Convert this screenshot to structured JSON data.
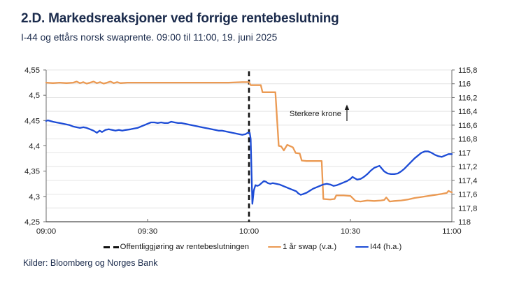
{
  "header": {
    "title": "2.D. Markedsreaksjoner ved forrige rentebeslutning",
    "subtitle": "I-44 og ettårs norsk swaprente. 09:00 til 11:00, 19. juni 2025"
  },
  "footer": {
    "source": "Kilder: Bloomberg og Norges Bank"
  },
  "colors": {
    "title_text": "#1b2b4c",
    "swap_line": "#eb9a53",
    "i44_line": "#1d4cd6",
    "event_line": "#111111",
    "grid": "#e4e4e4",
    "axis": "#6e6e6e",
    "tick_text": "#1a1a1a"
  },
  "chart_data": {
    "type": "line",
    "title": "2.D. Markedsreaksjoner ved forrige rentebeslutning",
    "subtitle": "I-44 og ettårs norsk swaprente. 09:00 til 11:00, 19. juni 2025",
    "x_unit": "minutes since 09:00",
    "x_min": 0,
    "x_max": 120,
    "x_ticks": [
      {
        "m": 0,
        "label": "09:00"
      },
      {
        "m": 30,
        "label": "09:30"
      },
      {
        "m": 60,
        "label": "10:00"
      },
      {
        "m": 90,
        "label": "10:30"
      },
      {
        "m": 120,
        "label": "11:00"
      }
    ],
    "left_axis": {
      "min": 4.25,
      "max": 4.55,
      "ticks": [
        4.55,
        4.5,
        4.45,
        4.4,
        4.35,
        4.3,
        4.25
      ],
      "decimal_separator": "comma"
    },
    "right_axis": {
      "min": 115.8,
      "max": 118,
      "inverted": true,
      "ticks": [
        115.8,
        116,
        116.2,
        116.4,
        116.6,
        116.8,
        117,
        117.2,
        117.4,
        117.6,
        117.8,
        118
      ],
      "decimal_separator": "comma"
    },
    "grid": "horizontal",
    "event_line": {
      "x_minute": 60,
      "label": "Offentliggjøring av rentebeslutningen",
      "style": "dashed-black"
    },
    "annotation": {
      "text": "Sterkere krone",
      "arrow": "up"
    },
    "legend_position": "bottom",
    "series": [
      {
        "name": "1 år swap (v.a.)",
        "axis": "left",
        "color": "#eb9a53",
        "points": [
          [
            0,
            4.525
          ],
          [
            2,
            4.524
          ],
          [
            4,
            4.525
          ],
          [
            6,
            4.524
          ],
          [
            8,
            4.525
          ],
          [
            9,
            4.527
          ],
          [
            10,
            4.524
          ],
          [
            11,
            4.526
          ],
          [
            12,
            4.523
          ],
          [
            13,
            4.525
          ],
          [
            14,
            4.527
          ],
          [
            15,
            4.524
          ],
          [
            16,
            4.526
          ],
          [
            17,
            4.523
          ],
          [
            18,
            4.525
          ],
          [
            19,
            4.527
          ],
          [
            20,
            4.524
          ],
          [
            21,
            4.526
          ],
          [
            22,
            4.524
          ],
          [
            24,
            4.525
          ],
          [
            26,
            4.525
          ],
          [
            30,
            4.525
          ],
          [
            34,
            4.525
          ],
          [
            38,
            4.525
          ],
          [
            42,
            4.525
          ],
          [
            46,
            4.525
          ],
          [
            50,
            4.525
          ],
          [
            54,
            4.525
          ],
          [
            58,
            4.526
          ],
          [
            60,
            4.526
          ],
          [
            60.5,
            4.52
          ],
          [
            63.5,
            4.52
          ],
          [
            64,
            4.506
          ],
          [
            67.8,
            4.506
          ],
          [
            68.8,
            4.4
          ],
          [
            69.5,
            4.399
          ],
          [
            70.3,
            4.391
          ],
          [
            71.3,
            4.402
          ],
          [
            72,
            4.4
          ],
          [
            73,
            4.397
          ],
          [
            73.8,
            4.386
          ],
          [
            75,
            4.385
          ],
          [
            75.6,
            4.371
          ],
          [
            77,
            4.37
          ],
          [
            81.5,
            4.37
          ],
          [
            82,
            4.295
          ],
          [
            84,
            4.294
          ],
          [
            85.3,
            4.295
          ],
          [
            85.8,
            4.302
          ],
          [
            88,
            4.302
          ],
          [
            90,
            4.301
          ],
          [
            91.5,
            4.291
          ],
          [
            93,
            4.29
          ],
          [
            95,
            4.292
          ],
          [
            97,
            4.291
          ],
          [
            99,
            4.292
          ],
          [
            100,
            4.293
          ],
          [
            100.6,
            4.298
          ],
          [
            101.6,
            4.29
          ],
          [
            103,
            4.291
          ],
          [
            105,
            4.292
          ],
          [
            107,
            4.294
          ],
          [
            109,
            4.297
          ],
          [
            111,
            4.299
          ],
          [
            113,
            4.301
          ],
          [
            115,
            4.303
          ],
          [
            117,
            4.305
          ],
          [
            118.5,
            4.307
          ],
          [
            119,
            4.311
          ],
          [
            119.6,
            4.309
          ],
          [
            120,
            4.308
          ]
        ]
      },
      {
        "name": "I44 (h.a.)",
        "axis": "right",
        "color": "#1d4cd6",
        "points": [
          [
            0,
            116.54
          ],
          [
            0.5,
            116.53
          ],
          [
            2,
            116.55
          ],
          [
            3,
            116.56
          ],
          [
            4,
            116.57
          ],
          [
            5,
            116.58
          ],
          [
            6,
            116.59
          ],
          [
            7,
            116.6
          ],
          [
            8,
            116.62
          ],
          [
            9,
            116.63
          ],
          [
            10,
            116.64
          ],
          [
            11,
            116.63
          ],
          [
            12,
            116.64
          ],
          [
            13,
            116.66
          ],
          [
            14,
            116.68
          ],
          [
            15,
            116.71
          ],
          [
            15.8,
            116.68
          ],
          [
            16.5,
            116.7
          ],
          [
            17.5,
            116.67
          ],
          [
            18.5,
            116.66
          ],
          [
            19.5,
            116.67
          ],
          [
            20.5,
            116.68
          ],
          [
            21.5,
            116.67
          ],
          [
            22.5,
            116.68
          ],
          [
            23.5,
            116.67
          ],
          [
            25,
            116.66
          ],
          [
            26,
            116.65
          ],
          [
            27,
            116.64
          ],
          [
            28,
            116.62
          ],
          [
            29,
            116.6
          ],
          [
            30,
            116.58
          ],
          [
            31,
            116.56
          ],
          [
            32,
            116.56
          ],
          [
            33,
            116.57
          ],
          [
            34,
            116.56
          ],
          [
            35,
            116.57
          ],
          [
            36,
            116.57
          ],
          [
            37,
            116.55
          ],
          [
            38,
            116.56
          ],
          [
            39,
            116.57
          ],
          [
            40,
            116.57
          ],
          [
            41,
            116.58
          ],
          [
            42,
            116.59
          ],
          [
            43,
            116.6
          ],
          [
            44,
            116.61
          ],
          [
            45,
            116.62
          ],
          [
            46,
            116.63
          ],
          [
            47,
            116.64
          ],
          [
            48,
            116.65
          ],
          [
            49,
            116.66
          ],
          [
            50,
            116.67
          ],
          [
            51,
            116.68
          ],
          [
            52,
            116.68
          ],
          [
            53,
            116.69
          ],
          [
            54,
            116.7
          ],
          [
            55,
            116.71
          ],
          [
            56,
            116.72
          ],
          [
            57,
            116.73
          ],
          [
            58,
            116.74
          ],
          [
            59,
            116.73
          ],
          [
            59.6,
            116.71
          ],
          [
            60.2,
            116.71
          ],
          [
            60.5,
            116.8
          ],
          [
            61,
            117.74
          ],
          [
            61.4,
            117.55
          ],
          [
            61.9,
            117.47
          ],
          [
            62.5,
            117.48
          ],
          [
            63,
            117.47
          ],
          [
            63.7,
            117.44
          ],
          [
            64.4,
            117.41
          ],
          [
            65,
            117.42
          ],
          [
            65.6,
            117.44
          ],
          [
            66.3,
            117.45
          ],
          [
            67,
            117.44
          ],
          [
            68,
            117.45
          ],
          [
            69,
            117.46
          ],
          [
            70,
            117.48
          ],
          [
            71,
            117.5
          ],
          [
            72,
            117.52
          ],
          [
            73,
            117.54
          ],
          [
            74,
            117.56
          ],
          [
            74.6,
            117.59
          ],
          [
            75.3,
            117.61
          ],
          [
            76,
            117.6
          ],
          [
            77,
            117.58
          ],
          [
            78,
            117.55
          ],
          [
            79,
            117.52
          ],
          [
            80,
            117.5
          ],
          [
            81,
            117.48
          ],
          [
            82,
            117.46
          ],
          [
            83,
            117.45
          ],
          [
            84,
            117.46
          ],
          [
            85,
            117.48
          ],
          [
            86,
            117.47
          ],
          [
            87,
            117.45
          ],
          [
            88,
            117.43
          ],
          [
            89,
            117.41
          ],
          [
            90,
            117.38
          ],
          [
            90.6,
            117.35
          ],
          [
            91.3,
            117.37
          ],
          [
            92,
            117.39
          ],
          [
            93,
            117.38
          ],
          [
            94,
            117.35
          ],
          [
            95,
            117.31
          ],
          [
            96,
            117.26
          ],
          [
            97,
            117.22
          ],
          [
            98,
            117.2
          ],
          [
            98.6,
            117.19
          ],
          [
            99.3,
            117.23
          ],
          [
            100,
            117.27
          ],
          [
            101,
            117.3
          ],
          [
            102,
            117.31
          ],
          [
            103,
            117.31
          ],
          [
            104,
            117.3
          ],
          [
            105,
            117.27
          ],
          [
            106,
            117.23
          ],
          [
            107,
            117.18
          ],
          [
            108,
            117.13
          ],
          [
            109,
            117.08
          ],
          [
            110,
            117.04
          ],
          [
            111,
            117.0
          ],
          [
            112,
            116.98
          ],
          [
            113,
            116.98
          ],
          [
            114,
            117.0
          ],
          [
            115,
            117.03
          ],
          [
            116,
            117.05
          ],
          [
            117,
            117.06
          ],
          [
            118,
            117.04
          ],
          [
            119,
            117.02
          ],
          [
            120,
            117.02
          ]
        ]
      }
    ]
  }
}
